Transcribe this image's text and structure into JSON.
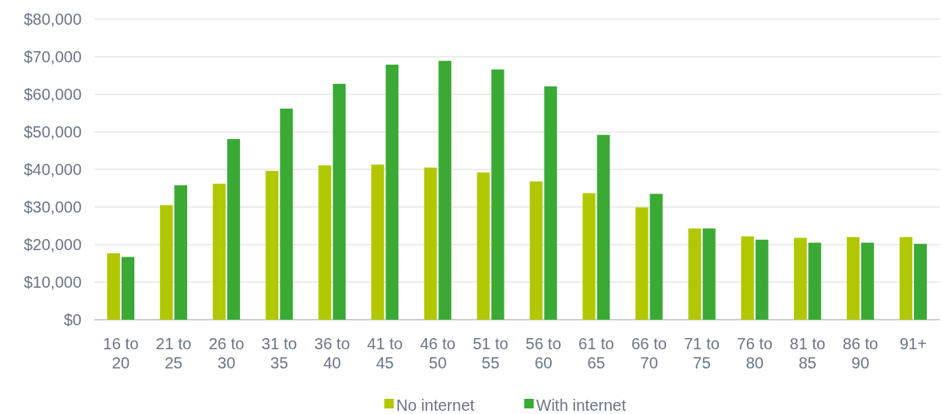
{
  "chart_data": {
    "type": "bar",
    "categories": [
      "16 to 20",
      "21 to 25",
      "26 to 30",
      "31 to 35",
      "36 to 40",
      "41 to 45",
      "46 to 50",
      "51 to 55",
      "56 to 60",
      "61 to 65",
      "66 to 70",
      "71 to 75",
      "76 to 80",
      "81 to 85",
      "86 to 90",
      "91+"
    ],
    "series": [
      {
        "name": "No internet",
        "color": "#b1c800",
        "values": [
          17700,
          30500,
          36200,
          39600,
          41100,
          41300,
          40500,
          39200,
          36800,
          33700,
          29900,
          24300,
          22200,
          21800,
          22000,
          22000
        ]
      },
      {
        "name": "With internet",
        "color": "#3aaa35",
        "values": [
          16700,
          35800,
          48100,
          56200,
          62800,
          67900,
          68900,
          66600,
          62100,
          49200,
          33500,
          24300,
          21300,
          20500,
          20500,
          20200
        ]
      }
    ],
    "ylim": [
      0,
      80000
    ],
    "yticks": [
      {
        "value": 0,
        "label": "$0"
      },
      {
        "value": 10000,
        "label": "$10,000"
      },
      {
        "value": 20000,
        "label": "$20,000"
      },
      {
        "value": 30000,
        "label": "$30,000"
      },
      {
        "value": 40000,
        "label": "$40,000"
      },
      {
        "value": 50000,
        "label": "$50,000"
      },
      {
        "value": 60000,
        "label": "$60,000"
      },
      {
        "value": 70000,
        "label": "$70,000"
      },
      {
        "value": 80000,
        "label": "$80,000"
      }
    ],
    "grid": "y",
    "legend": "bottom"
  }
}
